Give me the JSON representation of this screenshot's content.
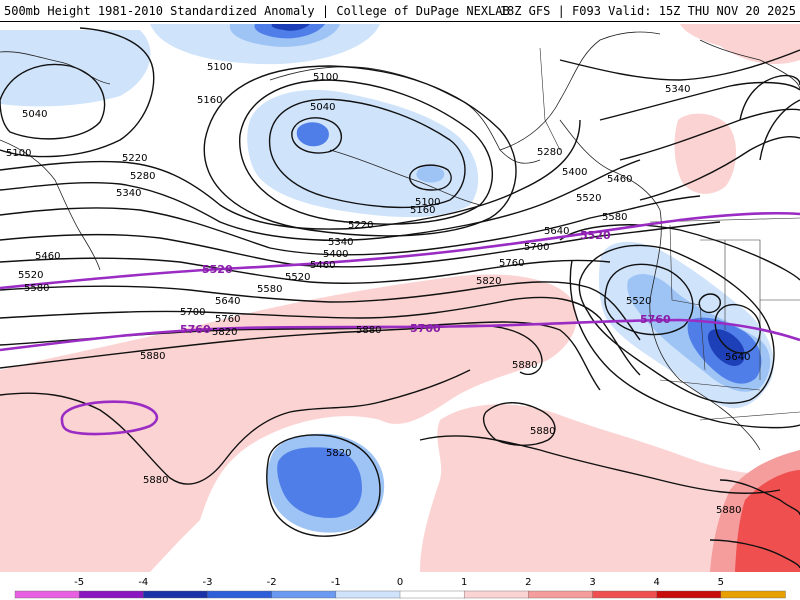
{
  "header": {
    "left": "500mb Height 1981-2010 Standardized Anomaly | College of DuPage NEXLAB",
    "right": "18Z GFS | F093 Valid: 15Z THU NOV 20 2025"
  },
  "colors": {
    "neg_light": "#cfe3fb",
    "neg_mid": "#9ec4f5",
    "neg_strong": "#4f7ee8",
    "neg_deep": "#1d3fb8",
    "pos_light": "#fcd3d3",
    "pos_mid": "#f59c9c",
    "pos_strong": "#ef4f4f",
    "contour_highlight": "#9a2cc4"
  },
  "contour_labels": {
    "c5040a": "5040",
    "c5100a": "5100",
    "c5100b": "5100",
    "c5160a": "5160",
    "c5100c": "5100",
    "c5040b": "5040",
    "c5220a": "5220",
    "c5280a": "5280",
    "c5340a": "5340",
    "c5460a": "5460",
    "c5520a": "5520",
    "c5580a": "5580",
    "c5100d": "5100",
    "c5160b": "5160",
    "c5220b": "5220",
    "c5340b": "5340",
    "c5400a": "5400",
    "c5460b": "5460",
    "c5520b": "5520",
    "c5580b": "5580",
    "c5640a": "5640",
    "c5700a": "5700",
    "c5760a": "5760",
    "c5820a": "5820",
    "c5760b": "5760",
    "c5700b": "5700",
    "c5640b": "5640",
    "c5820b": "5820",
    "c5880a": "5880",
    "c5880b": "5880",
    "c5880c": "5880",
    "c5880d": "5880",
    "c5820c": "5820",
    "c5880e": "5880",
    "c5280b": "5280",
    "c5400b": "5400",
    "c5460c": "5460",
    "c5520c": "5520",
    "c5580c": "5580",
    "c5340c": "5340",
    "c5520d": "5520",
    "c5640c": "5640"
  },
  "highlight_labels": {
    "p5520a": "5520",
    "p5520b": "5520",
    "p5760a": "5760",
    "p5760b": "5760",
    "p5760c": "5760"
  },
  "legend": {
    "ticks": [
      "-5",
      "-4",
      "-3",
      "-2",
      "-1",
      "0",
      "1",
      "2",
      "3",
      "4",
      "5"
    ],
    "colors": [
      "#e85ee0",
      "#8a16c0",
      "#1a32a8",
      "#2f5fd8",
      "#6b98f0",
      "#cfe3fb",
      "#ffffff",
      "#fcd3d3",
      "#f59c9c",
      "#ef4f4f",
      "#c80d0d",
      "#e8a000"
    ]
  }
}
